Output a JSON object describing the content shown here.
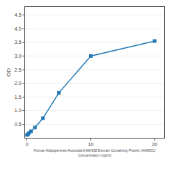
{
  "chart_data": {
    "type": "line",
    "xlabel": "Human Adipogenesis Associated Mth938 Domain Containing Protein (AAMDC)\nConcentration (ng/ml)",
    "ylabel": "OD",
    "x": [
      0,
      0.156,
      0.313,
      0.625,
      1.25,
      2.5,
      5,
      10,
      20
    ],
    "series": [
      {
        "values": [
          0.105,
          0.13,
          0.175,
          0.24,
          0.38,
          0.72,
          1.65,
          3.0,
          3.55
        ],
        "marker": "square"
      }
    ],
    "xlim": [
      -0.3,
      21.5
    ],
    "xticks": [
      0,
      10,
      20
    ],
    "ylim": [
      0.0,
      4.8
    ],
    "yticks": [
      0.5,
      {
        "value": 1.0,
        "label": "1.0"
      },
      1.5,
      {
        "value": 2.0,
        "label": "2.0"
      },
      2.5,
      {
        "value": 3.0,
        "label": "3.0"
      },
      3.5,
      {
        "value": 4.0,
        "label": "4.0"
      },
      4.5
    ],
    "grid": "y"
  }
}
